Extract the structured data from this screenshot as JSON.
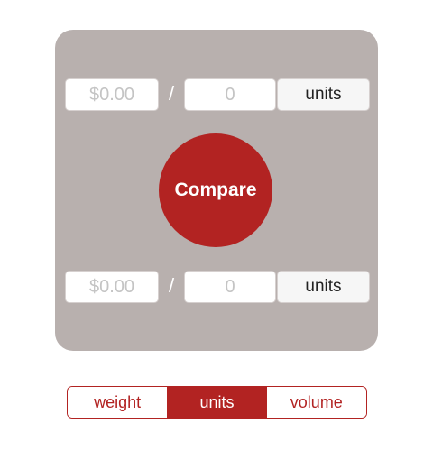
{
  "top_row": {
    "price_placeholder": "$0.00",
    "quantity_placeholder": "0",
    "separator": "/",
    "unit_label": "units"
  },
  "compare_button": {
    "label": "Compare"
  },
  "bottom_row": {
    "price_placeholder": "$0.00",
    "quantity_placeholder": "0",
    "separator": "/",
    "unit_label": "units"
  },
  "measure_selector": {
    "options": [
      "weight",
      "units",
      "volume"
    ],
    "selected": "units"
  },
  "colors": {
    "accent": "#b22322",
    "card_background": "#b8b0ae"
  }
}
